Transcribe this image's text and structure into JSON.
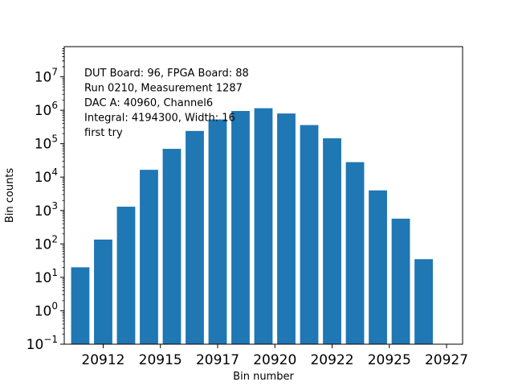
{
  "chart_data": {
    "type": "bar",
    "title": "",
    "xlabel": "Bin number",
    "ylabel": "Bin counts",
    "yscale": "log",
    "ylim": [
      0.1,
      80000000
    ],
    "xlim": [
      20910.3,
      20927.7
    ],
    "bar_color": "#1f77b4",
    "grid": false,
    "x": [
      20911,
      20912,
      20913,
      20914,
      20915,
      20916,
      20917,
      20918,
      20919,
      20920,
      20921,
      20922,
      20923,
      20924,
      20925,
      20926
    ],
    "values": [
      20,
      135,
      1300,
      16500,
      70000,
      240000,
      530000,
      950000,
      1150000,
      800000,
      360000,
      145000,
      28000,
      4000,
      570,
      35
    ],
    "x_ticks": [
      "20912",
      "20915",
      "20917",
      "20920",
      "20922",
      "20925",
      "20927"
    ],
    "x_tick_values": [
      20912.0,
      20914.5,
      20917.0,
      20919.5,
      20922.0,
      20924.5,
      20927.0
    ],
    "y_ticks": [
      {
        "base": "10",
        "exp": "−1",
        "value": 0.1
      },
      {
        "base": "10",
        "exp": "0",
        "value": 1
      },
      {
        "base": "10",
        "exp": "1",
        "value": 10
      },
      {
        "base": "10",
        "exp": "2",
        "value": 100
      },
      {
        "base": "10",
        "exp": "3",
        "value": 1000
      },
      {
        "base": "10",
        "exp": "4",
        "value": 10000
      },
      {
        "base": "10",
        "exp": "5",
        "value": 100000
      },
      {
        "base": "10",
        "exp": "6",
        "value": 1000000
      },
      {
        "base": "10",
        "exp": "7",
        "value": 10000000
      }
    ],
    "annotation_lines": [
      "DUT Board: 96, FPGA Board: 88",
      "Run 0210, Measurement 1287",
      "DAC A: 40960, Channel6",
      "Integral: 4194300, Width: 16",
      "first try"
    ]
  }
}
